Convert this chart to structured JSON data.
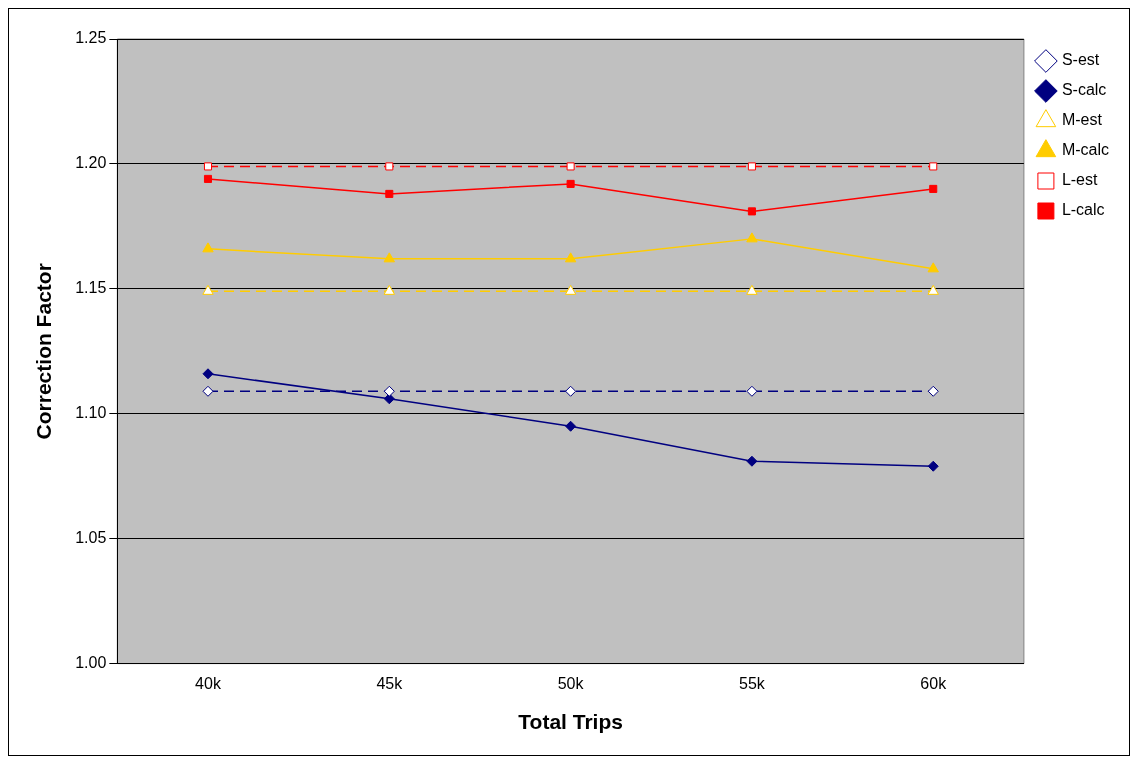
{
  "chart_data": {
    "type": "line",
    "xlabel": "Total Trips",
    "ylabel": "Correction Factor",
    "categories": [
      "40k",
      "45k",
      "50k",
      "55k",
      "60k"
    ],
    "series": [
      {
        "name": "S-est",
        "color": "#000080",
        "marker": "diamond",
        "line_style": "dashed",
        "values": [
          1.109,
          1.109,
          1.109,
          1.109,
          1.109
        ]
      },
      {
        "name": "S-calc",
        "color": "#000080",
        "marker": "diamond",
        "line_style": "solid",
        "values": [
          1.116,
          1.106,
          1.095,
          1.081,
          1.079
        ]
      },
      {
        "name": "M-est",
        "color": "#ffcc00",
        "marker": "triangle",
        "line_style": "dashed",
        "values": [
          1.149,
          1.149,
          1.149,
          1.149,
          1.149
        ]
      },
      {
        "name": "M-calc",
        "color": "#ffcc00",
        "marker": "triangle",
        "line_style": "solid",
        "values": [
          1.166,
          1.162,
          1.162,
          1.17,
          1.158
        ]
      },
      {
        "name": "L-est",
        "color": "#ff0000",
        "marker": "square",
        "line_style": "dashed",
        "values": [
          1.199,
          1.199,
          1.199,
          1.199,
          1.199
        ]
      },
      {
        "name": "L-calc",
        "color": "#ff0000",
        "marker": "square",
        "line_style": "solid",
        "values": [
          1.194,
          1.188,
          1.192,
          1.181,
          1.19
        ]
      }
    ],
    "ylim": [
      1.0,
      1.25
    ],
    "yticks": [
      {
        "value": 1.0,
        "label": "1.00"
      },
      {
        "value": 1.05,
        "label": "1.05"
      },
      {
        "value": 1.1,
        "label": "1.10"
      },
      {
        "value": 1.15,
        "label": "1.15"
      },
      {
        "value": 1.2,
        "label": "1.20"
      },
      {
        "value": 1.25,
        "label": "1.25"
      }
    ],
    "grid": "y",
    "legend": "top right"
  }
}
